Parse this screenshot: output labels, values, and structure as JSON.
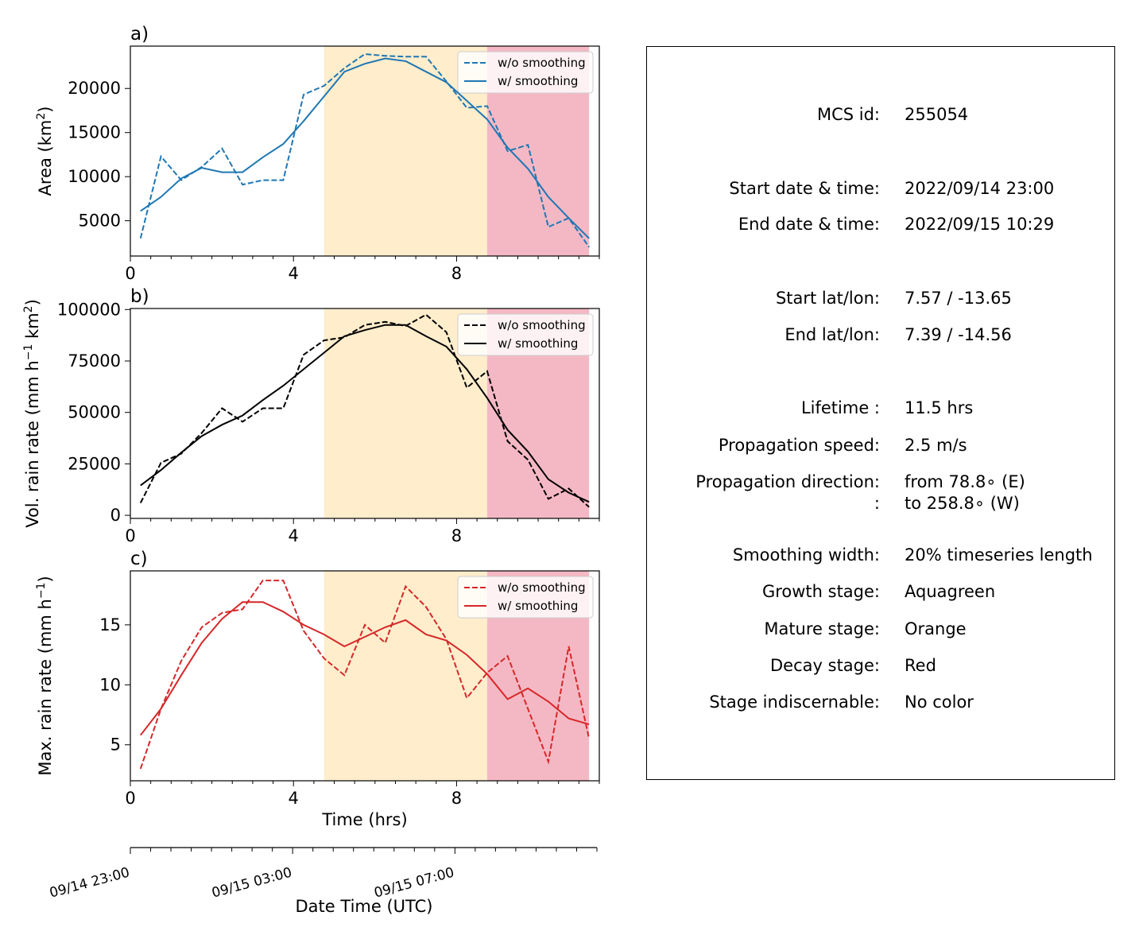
{
  "chart_data": [
    {
      "panel_label": "a)",
      "type": "line",
      "ylabel": "Area  (km²)",
      "ylim": [
        1000,
        24800
      ],
      "xlim": [
        0,
        11.5
      ],
      "xticks": [
        "0",
        "4",
        "8"
      ],
      "yticks": [
        "5000",
        "10000",
        "15000",
        "20000"
      ],
      "color": "#1f77b4",
      "legend_position": "upper-right",
      "x": [
        0.25,
        0.75,
        1.25,
        1.75,
        2.25,
        2.75,
        3.25,
        3.75,
        4.25,
        4.75,
        5.25,
        5.75,
        6.25,
        6.75,
        7.25,
        7.75,
        8.25,
        8.75,
        9.25,
        9.75,
        10.25,
        10.75,
        11.25
      ],
      "series": [
        {
          "name": "w/o smoothing",
          "style": "dashed",
          "values": [
            3000,
            12300,
            9600,
            11100,
            13200,
            9100,
            9600,
            9600,
            19300,
            20300,
            22300,
            23900,
            23700,
            23600,
            23600,
            20800,
            17800,
            18000,
            12900,
            13600,
            4300,
            5300,
            2000
          ]
        },
        {
          "name": "w/ smoothing",
          "style": "solid",
          "values": [
            6100,
            7700,
            9800,
            11000,
            10500,
            10500,
            12200,
            13700,
            16300,
            19100,
            21900,
            22800,
            23400,
            23100,
            21900,
            20700,
            18600,
            16500,
            13300,
            10900,
            7700,
            5300,
            3000
          ]
        }
      ]
    },
    {
      "panel_label": "b)",
      "type": "line",
      "ylabel": "Vol. rain rate (mm h⁻¹ km²)",
      "ylim": [
        -1500,
        100500
      ],
      "xlim": [
        0,
        11.5
      ],
      "xticks": [
        "0",
        "4",
        "8"
      ],
      "yticks": [
        "0",
        "25000",
        "50000",
        "75000",
        "100000"
      ],
      "color": "#000000",
      "legend_position": "upper-right",
      "x": [
        0.25,
        0.75,
        1.25,
        1.75,
        2.25,
        2.75,
        3.25,
        3.75,
        4.25,
        4.75,
        5.25,
        5.75,
        6.25,
        6.75,
        7.25,
        7.75,
        8.25,
        8.75,
        9.25,
        9.75,
        10.25,
        10.75,
        11.25
      ],
      "series": [
        {
          "name": "w/o smoothing",
          "style": "dashed",
          "values": [
            6000,
            25500,
            30000,
            40000,
            52000,
            45500,
            52000,
            52000,
            78000,
            85000,
            86500,
            92500,
            94000,
            92000,
            97500,
            89000,
            62000,
            70000,
            36000,
            27000,
            8000,
            13000,
            4000
          ]
        },
        {
          "name": "w/ smoothing",
          "style": "solid",
          "values": [
            14500,
            22000,
            30500,
            38500,
            44000,
            48500,
            56000,
            63000,
            71000,
            79000,
            87000,
            90000,
            92500,
            92500,
            87000,
            82000,
            71000,
            57000,
            41500,
            31000,
            17500,
            11000,
            6500
          ]
        }
      ]
    },
    {
      "panel_label": "c)",
      "type": "line",
      "ylabel": "Max. rain rate  (mm h⁻¹)",
      "ylim": [
        2,
        19.5
      ],
      "xlim": [
        0,
        11.5
      ],
      "xticks": [
        "0",
        "4",
        "8"
      ],
      "yticks": [
        "5",
        "10",
        "15"
      ],
      "xlabel": "Time (hrs)",
      "color": "#d62728",
      "legend_position": "upper-right",
      "x": [
        0.25,
        0.75,
        1.25,
        1.75,
        2.25,
        2.75,
        3.25,
        3.75,
        4.25,
        4.75,
        5.25,
        5.75,
        6.25,
        6.75,
        7.25,
        7.75,
        8.25,
        8.75,
        9.25,
        9.75,
        10.25,
        10.75,
        11.25
      ],
      "series": [
        {
          "name": "w/o smoothing",
          "style": "dashed",
          "values": [
            3.0,
            8.0,
            12.0,
            14.8,
            16.0,
            16.3,
            18.7,
            18.7,
            14.5,
            12.2,
            10.8,
            15.0,
            13.5,
            18.2,
            16.5,
            13.8,
            8.9,
            11.0,
            12.4,
            8.0,
            3.6,
            13.2,
            5.5
          ]
        },
        {
          "name": "w/ smoothing",
          "style": "solid",
          "values": [
            5.8,
            8.0,
            10.8,
            13.5,
            15.5,
            16.9,
            16.9,
            16.1,
            15.0,
            14.2,
            13.2,
            14.0,
            14.8,
            15.4,
            14.2,
            13.7,
            12.5,
            10.9,
            8.8,
            9.7,
            8.6,
            7.2,
            6.7
          ]
        }
      ]
    }
  ],
  "stages": {
    "mature": {
      "x_start": 4.75,
      "x_end": 8.75,
      "color": "#ffedcc"
    },
    "decay": {
      "x_start": 8.75,
      "x_end": 11.25,
      "color": "#f4b8c4"
    }
  },
  "datetime_axis": {
    "label": "Date Time (UTC)",
    "ticks": [
      "09/14 23:00",
      "09/15 03:00",
      "09/15 07:00"
    ],
    "tick_hours": [
      0,
      4,
      8
    ],
    "minor_tick_hours": [
      0.5,
      1,
      1.5,
      2,
      2.5,
      3,
      3.5,
      4.5,
      5,
      5.5,
      6,
      6.5,
      7,
      7.5,
      8.5,
      9,
      9.5,
      10,
      10.5,
      11,
      11.5
    ]
  },
  "info": [
    {
      "label": "MCS id:",
      "value": "255054"
    },
    {
      "label": "Start date & time:",
      "value": "2022/09/14 23:00"
    },
    {
      "label": "End date & time:",
      "value": "2022/09/15 10:29"
    },
    {
      "label": "Start lat/lon:",
      "value": "7.57 / -13.65"
    },
    {
      "label": "End lat/lon:",
      "value": "7.39 / -14.56"
    },
    {
      "label": "Lifetime :",
      "value": "11.5 hrs"
    },
    {
      "label": "Propagation speed:",
      "value": "2.5 m/s"
    },
    {
      "label": "Propagation direction:",
      "value": "from  78.8∘ (E)"
    },
    {
      "label": ":",
      "value": "to   258.8∘ (W)"
    },
    {
      "label": "Smoothing width:",
      "value": "20% timeseries length"
    },
    {
      "label": "Growth stage:",
      "value": "Aquagreen"
    },
    {
      "label": "Mature stage:",
      "value": "Orange"
    },
    {
      "label": "Decay stage:",
      "value": "Red"
    },
    {
      "label": "Stage indiscernable:",
      "value": "No color"
    }
  ]
}
